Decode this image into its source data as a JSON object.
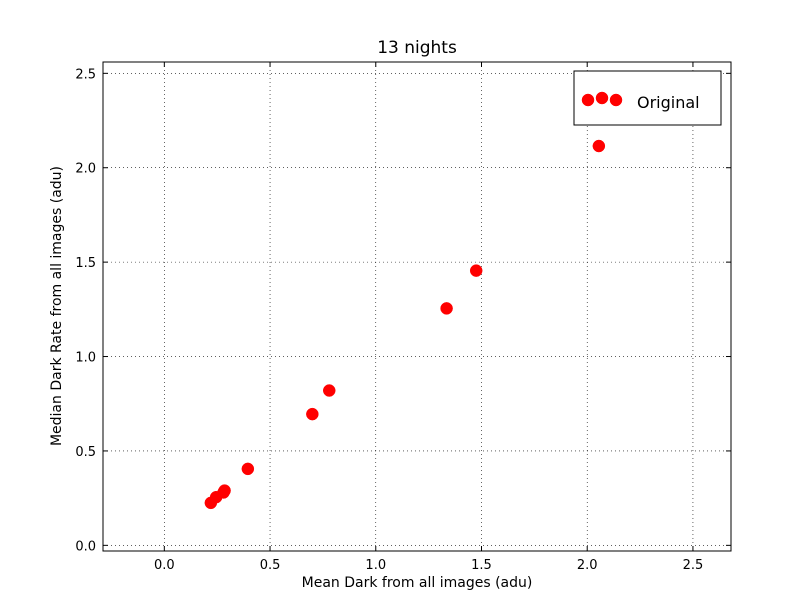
{
  "chart_data": {
    "type": "scatter",
    "title": "13 nights",
    "xlabel": "Mean Dark from all images (adu)",
    "ylabel": "Median Dark Rate from all images (adu)",
    "xlim": [
      -0.29,
      2.68
    ],
    "ylim": [
      -0.03,
      2.56
    ],
    "xticks": [
      0.0,
      0.5,
      1.0,
      1.5,
      2.0,
      2.5
    ],
    "xtick_labels": [
      "0.0",
      "0.5",
      "1.0",
      "1.5",
      "2.0",
      "2.5"
    ],
    "yticks": [
      0.0,
      0.5,
      1.0,
      1.5,
      2.0,
      2.5
    ],
    "ytick_labels": [
      "0.0",
      "0.5",
      "1.0",
      "1.5",
      "2.0",
      "2.5"
    ],
    "grid": true,
    "legend_position": "top-right",
    "series": [
      {
        "name": "Original",
        "color": "#ff0000",
        "marker": "circle",
        "x": [
          0.22,
          0.245,
          0.28,
          0.285,
          0.395,
          0.7,
          0.78,
          1.335,
          1.475,
          2.055
        ],
        "y": [
          0.225,
          0.255,
          0.28,
          0.29,
          0.405,
          0.695,
          0.82,
          1.255,
          1.455,
          2.115
        ]
      }
    ]
  }
}
